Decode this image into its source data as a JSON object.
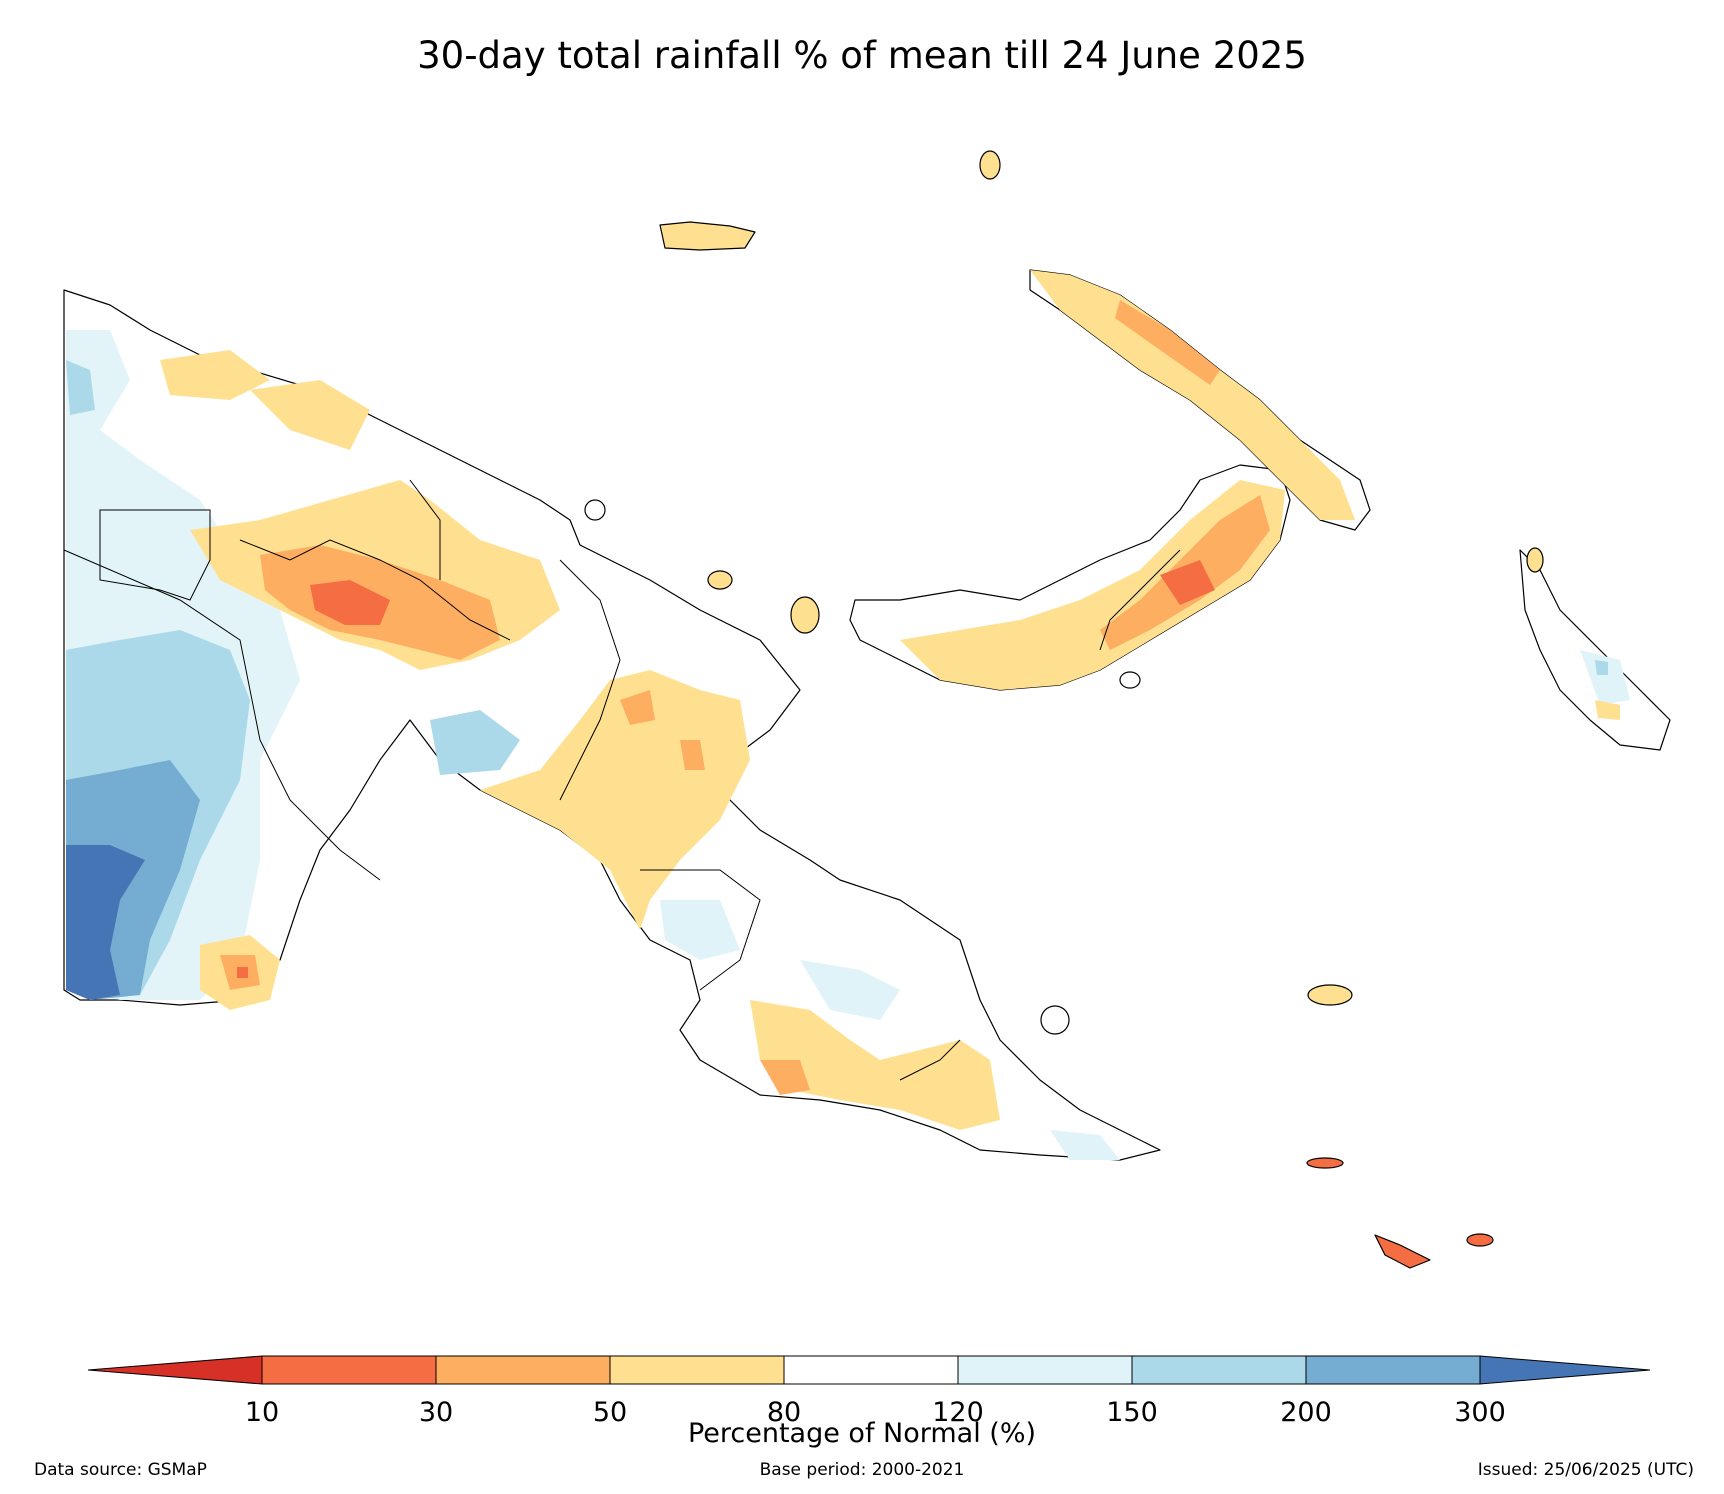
{
  "title": "30-day total rainfall % of mean till 24 June 2025",
  "colorbar": {
    "label": "Percentage of Normal (%)",
    "ticks": [
      "10",
      "30",
      "50",
      "80",
      "120",
      "150",
      "200",
      "300"
    ],
    "under_color": "#d73027",
    "over_color": "#4575b4",
    "bins": [
      {
        "range": "10-30",
        "color": "#f46d43"
      },
      {
        "range": "30-50",
        "color": "#fdae61"
      },
      {
        "range": "50-80",
        "color": "#fee090"
      },
      {
        "range": "80-120",
        "color": "#ffffff"
      },
      {
        "range": "120-150",
        "color": "#e0f3f8"
      },
      {
        "range": "150-200",
        "color": "#abd9e9"
      },
      {
        "range": "200-300",
        "color": "#74add1"
      }
    ]
  },
  "footer": {
    "source": "Data source: GSMaP",
    "base_period": "Base period: 2000-2021",
    "issued": "Issued: 25/06/2025 (UTC)"
  }
}
